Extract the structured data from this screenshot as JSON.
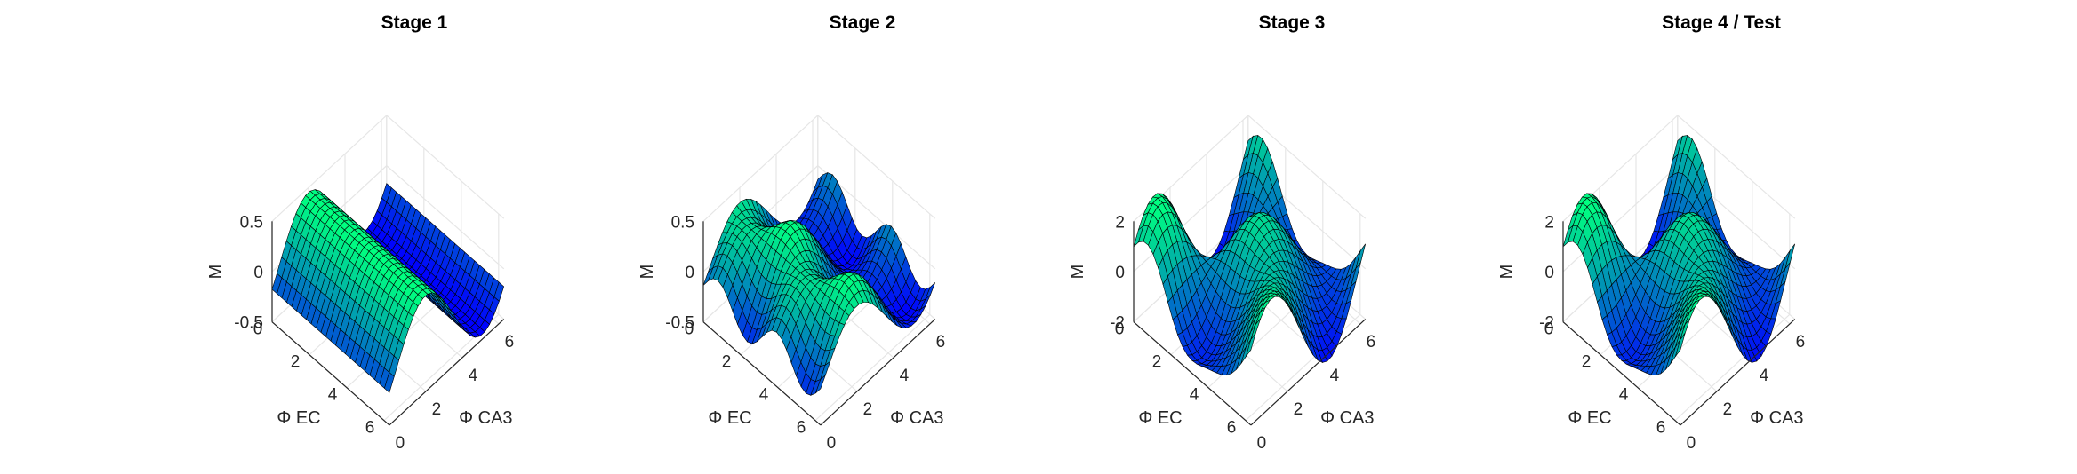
{
  "chart_data": [
    {
      "type": "surface",
      "title": "Stage 1",
      "xlabel": "Φ EC",
      "ylabel": "Φ CA3",
      "zlabel": "M",
      "x_ticks": [
        "0",
        "2",
        "4",
        "6"
      ],
      "y_ticks": [
        "0",
        "2",
        "4",
        "6"
      ],
      "z_ticks": [
        "-0.5",
        "0",
        "0.5"
      ],
      "x_range": [
        0,
        6.283
      ],
      "y_range": [
        0,
        6.283
      ],
      "z_range": [
        -0.5,
        0.5
      ],
      "grid": true,
      "colormap": "winter",
      "surface": {
        "a": 0.35,
        "b": 0.0,
        "c": 0.0,
        "d": 0.0
      },
      "colors": {
        "low": "#0000ff",
        "high": "#00ff80"
      }
    },
    {
      "type": "surface",
      "title": "Stage 2",
      "xlabel": "Φ EC",
      "ylabel": "Φ CA3",
      "zlabel": "M",
      "x_ticks": [
        "0",
        "2",
        "4",
        "6"
      ],
      "y_ticks": [
        "0",
        "2",
        "4",
        "6"
      ],
      "z_ticks": [
        "-0.5",
        "0",
        "0.5"
      ],
      "x_range": [
        0,
        6.283
      ],
      "y_range": [
        0,
        6.283
      ],
      "z_range": [
        -0.5,
        0.5
      ],
      "grid": true,
      "colormap": "winter",
      "surface": {
        "a": 0.3,
        "b": 0.15,
        "c": 0.0,
        "d": 0.0
      },
      "colors": {
        "low": "#0000ff",
        "high": "#00ff80"
      }
    },
    {
      "type": "surface",
      "title": "Stage 3",
      "xlabel": "Φ EC",
      "ylabel": "Φ CA3",
      "zlabel": "M",
      "x_ticks": [
        "0",
        "2",
        "4",
        "6"
      ],
      "y_ticks": [
        "0",
        "2",
        "4",
        "6"
      ],
      "z_ticks": [
        "-2",
        "0",
        "2"
      ],
      "x_range": [
        0,
        6.283
      ],
      "y_range": [
        0,
        6.283
      ],
      "z_range": [
        -2,
        2
      ],
      "grid": true,
      "colormap": "winter",
      "surface": {
        "a": 0.5,
        "b": 0.3,
        "c": 1.1,
        "d": 0.6
      },
      "colors": {
        "low": "#0000ff",
        "high": "#00ff80"
      }
    },
    {
      "type": "surface",
      "title": "Stage 4 / Test",
      "xlabel": "Φ EC",
      "ylabel": "Φ CA3",
      "zlabel": "M",
      "x_ticks": [
        "0",
        "2",
        "4",
        "6"
      ],
      "y_ticks": [
        "0",
        "2",
        "4",
        "6"
      ],
      "z_ticks": [
        "-2",
        "0",
        "2"
      ],
      "x_range": [
        0,
        6.283
      ],
      "y_range": [
        0,
        6.283
      ],
      "z_range": [
        -2,
        2
      ],
      "grid": true,
      "colormap": "winter",
      "surface": {
        "a": 0.5,
        "b": 0.3,
        "c": 1.1,
        "d": 0.6
      },
      "colors": {
        "low": "#0000ff",
        "high": "#00ff80"
      }
    }
  ]
}
